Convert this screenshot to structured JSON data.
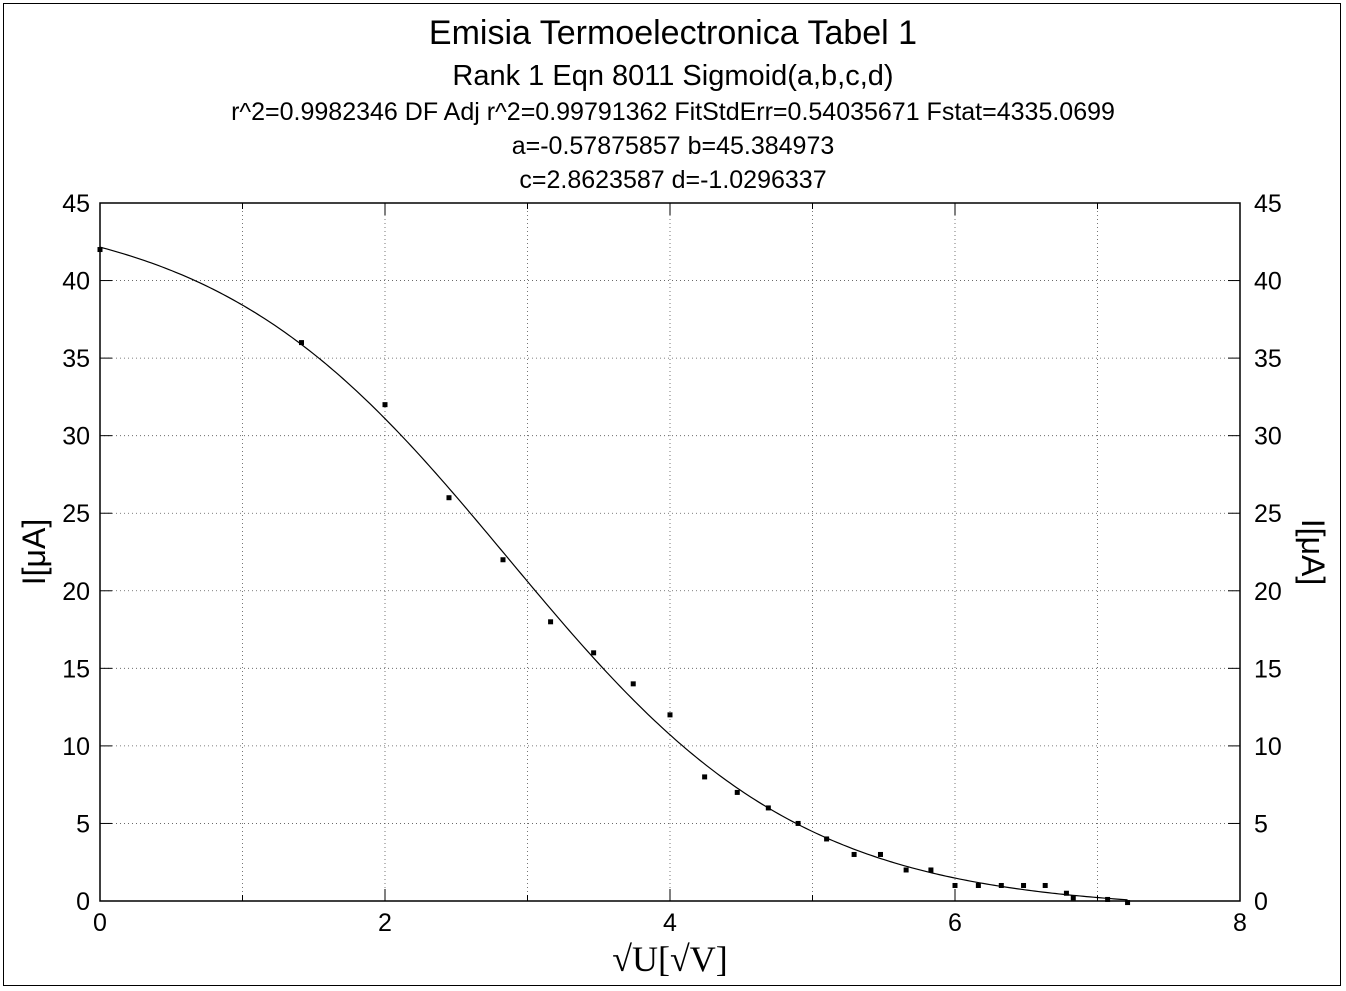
{
  "chart_data": {
    "type": "scatter",
    "title": "Emisia Termoelectronica Tabel 1",
    "subtitle": "Rank 1  Eqn 8011  Sigmoid(a,b,c,d)",
    "stats_line": "r^2=0.9982346  DF Adj r^2=0.99791362  FitStdErr=0.54035671  Fstat=4335.0699",
    "params_line1": "a=-0.57875857 b=45.384973",
    "params_line2": "c=2.8623587 d=-1.0296337",
    "xlabel": "√U[√V]",
    "ylabel_left": "I[μA]",
    "ylabel_right": "I[μA]",
    "xlim": [
      0,
      8
    ],
    "ylim": [
      0,
      45
    ],
    "x_ticks": [
      "0",
      "2",
      "4",
      "6",
      "8"
    ],
    "y_ticks": [
      "0",
      "5",
      "10",
      "15",
      "20",
      "25",
      "30",
      "35",
      "40",
      "45"
    ],
    "grid": true,
    "fit": {
      "a": -0.57875857,
      "b": 45.384973,
      "c": 2.8623587,
      "d": -1.0296337
    },
    "series": [
      {
        "x": [
          0,
          1.414,
          2,
          2.449,
          2.828,
          3.162,
          3.464,
          3.742,
          4,
          4.243,
          4.472,
          4.69,
          4.899,
          5.099,
          5.292,
          5.477,
          5.657,
          5.831,
          6,
          6.164,
          6.325,
          6.481,
          6.633,
          6.782,
          6.83,
          7.071,
          7.211
        ],
        "y": [
          42,
          36,
          32,
          26,
          22,
          18,
          16,
          14,
          12,
          8,
          7,
          6,
          5,
          4,
          3,
          3,
          2,
          2,
          1,
          1,
          1,
          1,
          1,
          0.5,
          0.2,
          0.1,
          -0.1
        ]
      }
    ]
  }
}
